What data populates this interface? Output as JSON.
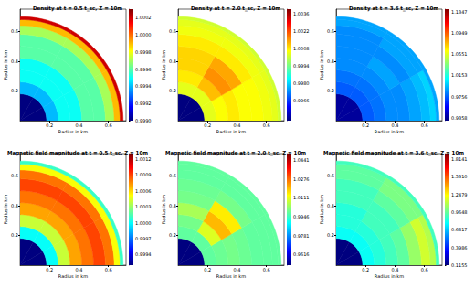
{
  "chart_data": [
    {
      "type": "heatmap",
      "title": "Density at t = 0.5 t_sc, Z = 10m",
      "x_label": "Radius in km",
      "y_label": "Radius in km",
      "xlim": [
        0,
        0.72
      ],
      "ylim": [
        0,
        0.75
      ],
      "xticks": [
        0.2,
        0.4,
        0.6
      ],
      "yticks": [
        0.2,
        0.4,
        0.6
      ],
      "r_edges": [
        0,
        0.18,
        0.26,
        0.34,
        0.42,
        0.5,
        0.58,
        0.64,
        0.68,
        0.7
      ],
      "theta_edges": [
        0,
        30,
        60,
        90
      ],
      "values": [
        [
          0.999,
          0.999,
          0.999
        ],
        [
          0.9994,
          0.9994,
          0.9994
        ],
        [
          0.9995,
          0.9995,
          0.9995
        ],
        [
          0.9995,
          0.9995,
          0.9995
        ],
        [
          0.9996,
          0.9996,
          0.9996
        ],
        [
          0.9996,
          0.9996,
          0.9996
        ],
        [
          0.9997,
          0.9997,
          0.9997
        ],
        [
          0.9999,
          0.9999,
          0.9999
        ],
        [
          1.0002,
          1.0002,
          1.0002
        ]
      ],
      "colorbar_range": [
        0.999,
        1.0003
      ],
      "colorbar_ticks": [
        {
          "value": 0.999,
          "label": "0.9990"
        },
        {
          "value": 0.9992,
          "label": "0.9992"
        },
        {
          "value": 0.9994,
          "label": "0.9994"
        },
        {
          "value": 0.9996,
          "label": "0.9996"
        },
        {
          "value": 0.9998,
          "label": "0.9998"
        },
        {
          "value": 1,
          "label": "1.0000"
        },
        {
          "value": 1.0002,
          "label": "1.0002"
        }
      ]
    },
    {
      "type": "heatmap",
      "title": "Density at t = 2.0 t_sc, Z = 10m",
      "x_label": "Radius in km",
      "y_label": "Radius in km",
      "xlim": [
        0,
        0.72
      ],
      "ylim": [
        0,
        0.75
      ],
      "xticks": [
        0.2,
        0.4,
        0.6
      ],
      "yticks": [
        0.2,
        0.4,
        0.6
      ],
      "r_edges": [
        0,
        0.18,
        0.26,
        0.34,
        0.42,
        0.5,
        0.58,
        0.64,
        0.68,
        0.7
      ],
      "theta_edges": [
        0,
        30,
        60,
        90
      ],
      "values": [
        [
          0.995,
          0.995,
          0.995
        ],
        [
          1.0004,
          1.0004,
          1.0004
        ],
        [
          1.0006,
          1.0012,
          1.0008
        ],
        [
          1.0008,
          1.0016,
          1.001
        ],
        [
          1.0006,
          1.0014,
          1.001
        ],
        [
          1.0006,
          1.0008,
          1.0008
        ],
        [
          1.0005,
          1.0005,
          1.0005
        ],
        [
          1.0004,
          1.0004,
          1.0004
        ],
        [
          1.0002,
          1.0002,
          1.0002
        ]
      ],
      "colorbar_range": [
        0.995,
        1.004
      ],
      "colorbar_ticks": [
        {
          "value": 0.9966,
          "label": "0.9966"
        },
        {
          "value": 0.998,
          "label": "0.9980"
        },
        {
          "value": 0.9994,
          "label": "0.9994"
        },
        {
          "value": 1.0008,
          "label": "1.0008"
        },
        {
          "value": 1.0022,
          "label": "1.0022"
        },
        {
          "value": 1.0036,
          "label": "1.0036"
        }
      ]
    },
    {
      "type": "heatmap",
      "title": "Density at t = 3.6 t_sc, Z = 10m",
      "x_label": "Radius in km",
      "y_label": "Radius in km",
      "xlim": [
        0,
        0.72
      ],
      "ylim": [
        0,
        0.75
      ],
      "xticks": [
        0.2,
        0.4,
        0.6
      ],
      "yticks": [
        0.2,
        0.4,
        0.6
      ],
      "r_edges": [
        0,
        0.18,
        0.26,
        0.34,
        0.42,
        0.5,
        0.58,
        0.64,
        0.68,
        0.7
      ],
      "theta_edges": [
        0,
        30,
        60,
        90
      ],
      "values": [
        [
          0.9358,
          0.9358,
          0.9358
        ],
        [
          0.975,
          0.975,
          0.975
        ],
        [
          0.98,
          0.98,
          0.98
        ],
        [
          0.985,
          0.985,
          0.985
        ],
        [
          0.985,
          0.99,
          0.985
        ],
        [
          0.99,
          0.985,
          0.985
        ],
        [
          0.995,
          0.99,
          0.985
        ],
        [
          1.0,
          0.99,
          0.99
        ],
        [
          0.99,
          0.99,
          0.99
        ]
      ],
      "colorbar_range": [
        0.93,
        1.14
      ],
      "colorbar_ticks": [
        {
          "value": 0.9358,
          "label": "0.9358"
        },
        {
          "value": 0.9756,
          "label": "0.9756"
        },
        {
          "value": 1.0153,
          "label": "1.0153"
        },
        {
          "value": 1.0551,
          "label": "1.0551"
        },
        {
          "value": 1.0949,
          "label": "1.0949"
        },
        {
          "value": 1.1347,
          "label": "1.1347"
        }
      ]
    },
    {
      "type": "heatmap",
      "title": "Magnetic field magnitude at t = 0.5 t_sc, Z = 10m",
      "x_label": "Radius in km",
      "y_label": "Radius in km",
      "xlim": [
        0,
        0.72
      ],
      "ylim": [
        0,
        0.75
      ],
      "xticks": [
        0.2,
        0.4,
        0.6
      ],
      "yticks": [
        0.2,
        0.4,
        0.6
      ],
      "r_edges": [
        0,
        0.18,
        0.26,
        0.34,
        0.42,
        0.5,
        0.58,
        0.64,
        0.68,
        0.7
      ],
      "theta_edges": [
        0,
        30,
        60,
        90
      ],
      "values": [
        [
          0.9992,
          0.9992,
          0.9992
        ],
        [
          1.0,
          1.0,
          1.0
        ],
        [
          1.0004,
          1.0004,
          1.0004
        ],
        [
          1.0007,
          1.0007,
          1.0007
        ],
        [
          1.0008,
          1.0008,
          1.0008
        ],
        [
          1.0009,
          1.0009,
          1.0009
        ],
        [
          1.0008,
          1.0008,
          1.0008
        ],
        [
          1.0005,
          1.0005,
          1.0005
        ],
        [
          1.0001,
          1.0001,
          1.0001
        ]
      ],
      "colorbar_range": [
        0.9992,
        1.0013
      ],
      "colorbar_ticks": [
        {
          "value": 0.9994,
          "label": "0.9994"
        },
        {
          "value": 0.9997,
          "label": "0.9997"
        },
        {
          "value": 1,
          "label": "1.0000"
        },
        {
          "value": 1.0003,
          "label": "1.0003"
        },
        {
          "value": 1.0006,
          "label": "1.0006"
        },
        {
          "value": 1.0009,
          "label": "1.0009"
        },
        {
          "value": 1.0012,
          "label": "1.0012"
        }
      ]
    },
    {
      "type": "heatmap",
      "title": "Magnetic field magnitude at t = 2.0 t_sc, Z = 10m",
      "x_label": "Radius in km",
      "y_label": "Radius in km",
      "xlim": [
        0,
        0.72
      ],
      "ylim": [
        0,
        0.75
      ],
      "xticks": [
        0.2,
        0.4,
        0.6
      ],
      "yticks": [
        0.2,
        0.4,
        0.6
      ],
      "r_edges": [
        0,
        0.18,
        0.26,
        0.34,
        0.42,
        0.5,
        0.58,
        0.64,
        0.68,
        0.7
      ],
      "theta_edges": [
        0,
        30,
        60,
        90
      ],
      "values": [
        [
          0.952,
          0.952,
          0.952
        ],
        [
          0.998,
          0.998,
          0.998
        ],
        [
          0.999,
          1.01,
          1.0
        ],
        [
          1.0,
          1.02,
          1.005
        ],
        [
          0.999,
          1.015,
          1.0
        ],
        [
          0.998,
          1.0,
          0.999
        ],
        [
          0.998,
          0.998,
          0.998
        ],
        [
          0.998,
          0.998,
          0.998
        ],
        [
          0.998,
          0.998,
          0.998
        ]
      ],
      "colorbar_range": [
        0.952,
        1.05
      ],
      "colorbar_ticks": [
        {
          "value": 0.9616,
          "label": "0.9616"
        },
        {
          "value": 0.9781,
          "label": "0.9781"
        },
        {
          "value": 0.9946,
          "label": "0.9946"
        },
        {
          "value": 1.0111,
          "label": "1.0111"
        },
        {
          "value": 1.0276,
          "label": "1.0276"
        },
        {
          "value": 1.0441,
          "label": "1.0441"
        }
      ]
    },
    {
      "type": "heatmap",
      "title": "Magnetic field magnitude at t = 3.6 t_sc, Z = 10m",
      "x_label": "Radius in km",
      "y_label": "Radius in km",
      "xlim": [
        0,
        0.72
      ],
      "ylim": [
        0,
        0.75
      ],
      "xticks": [
        0.2,
        0.4,
        0.6
      ],
      "yticks": [
        0.2,
        0.4,
        0.6
      ],
      "r_edges": [
        0,
        0.18,
        0.26,
        0.34,
        0.42,
        0.5,
        0.58,
        0.64,
        0.68,
        0.7
      ],
      "theta_edges": [
        0,
        30,
        60,
        90
      ],
      "values": [
        [
          0.1155,
          0.1155,
          0.1155
        ],
        [
          0.8,
          0.8,
          0.8
        ],
        [
          0.85,
          0.85,
          0.85
        ],
        [
          0.9,
          0.9,
          0.85
        ],
        [
          0.95,
          0.9,
          0.9
        ],
        [
          1.05,
          0.95,
          0.9
        ],
        [
          1.15,
          1.0,
          0.95
        ],
        [
          1.1,
          1.0,
          0.95
        ],
        [
          0.9,
          0.9,
          0.9
        ]
      ],
      "colorbar_range": [
        0.1155,
        1.9
      ],
      "colorbar_ticks": [
        {
          "value": 0.1155,
          "label": "0.1155"
        },
        {
          "value": 0.3986,
          "label": "0.3986"
        },
        {
          "value": 0.6817,
          "label": "0.6817"
        },
        {
          "value": 0.9648,
          "label": "0.9648"
        },
        {
          "value": 1.2479,
          "label": "1.2479"
        },
        {
          "value": 1.531,
          "label": "1.5310"
        },
        {
          "value": 1.8141,
          "label": "1.8141"
        }
      ]
    }
  ]
}
